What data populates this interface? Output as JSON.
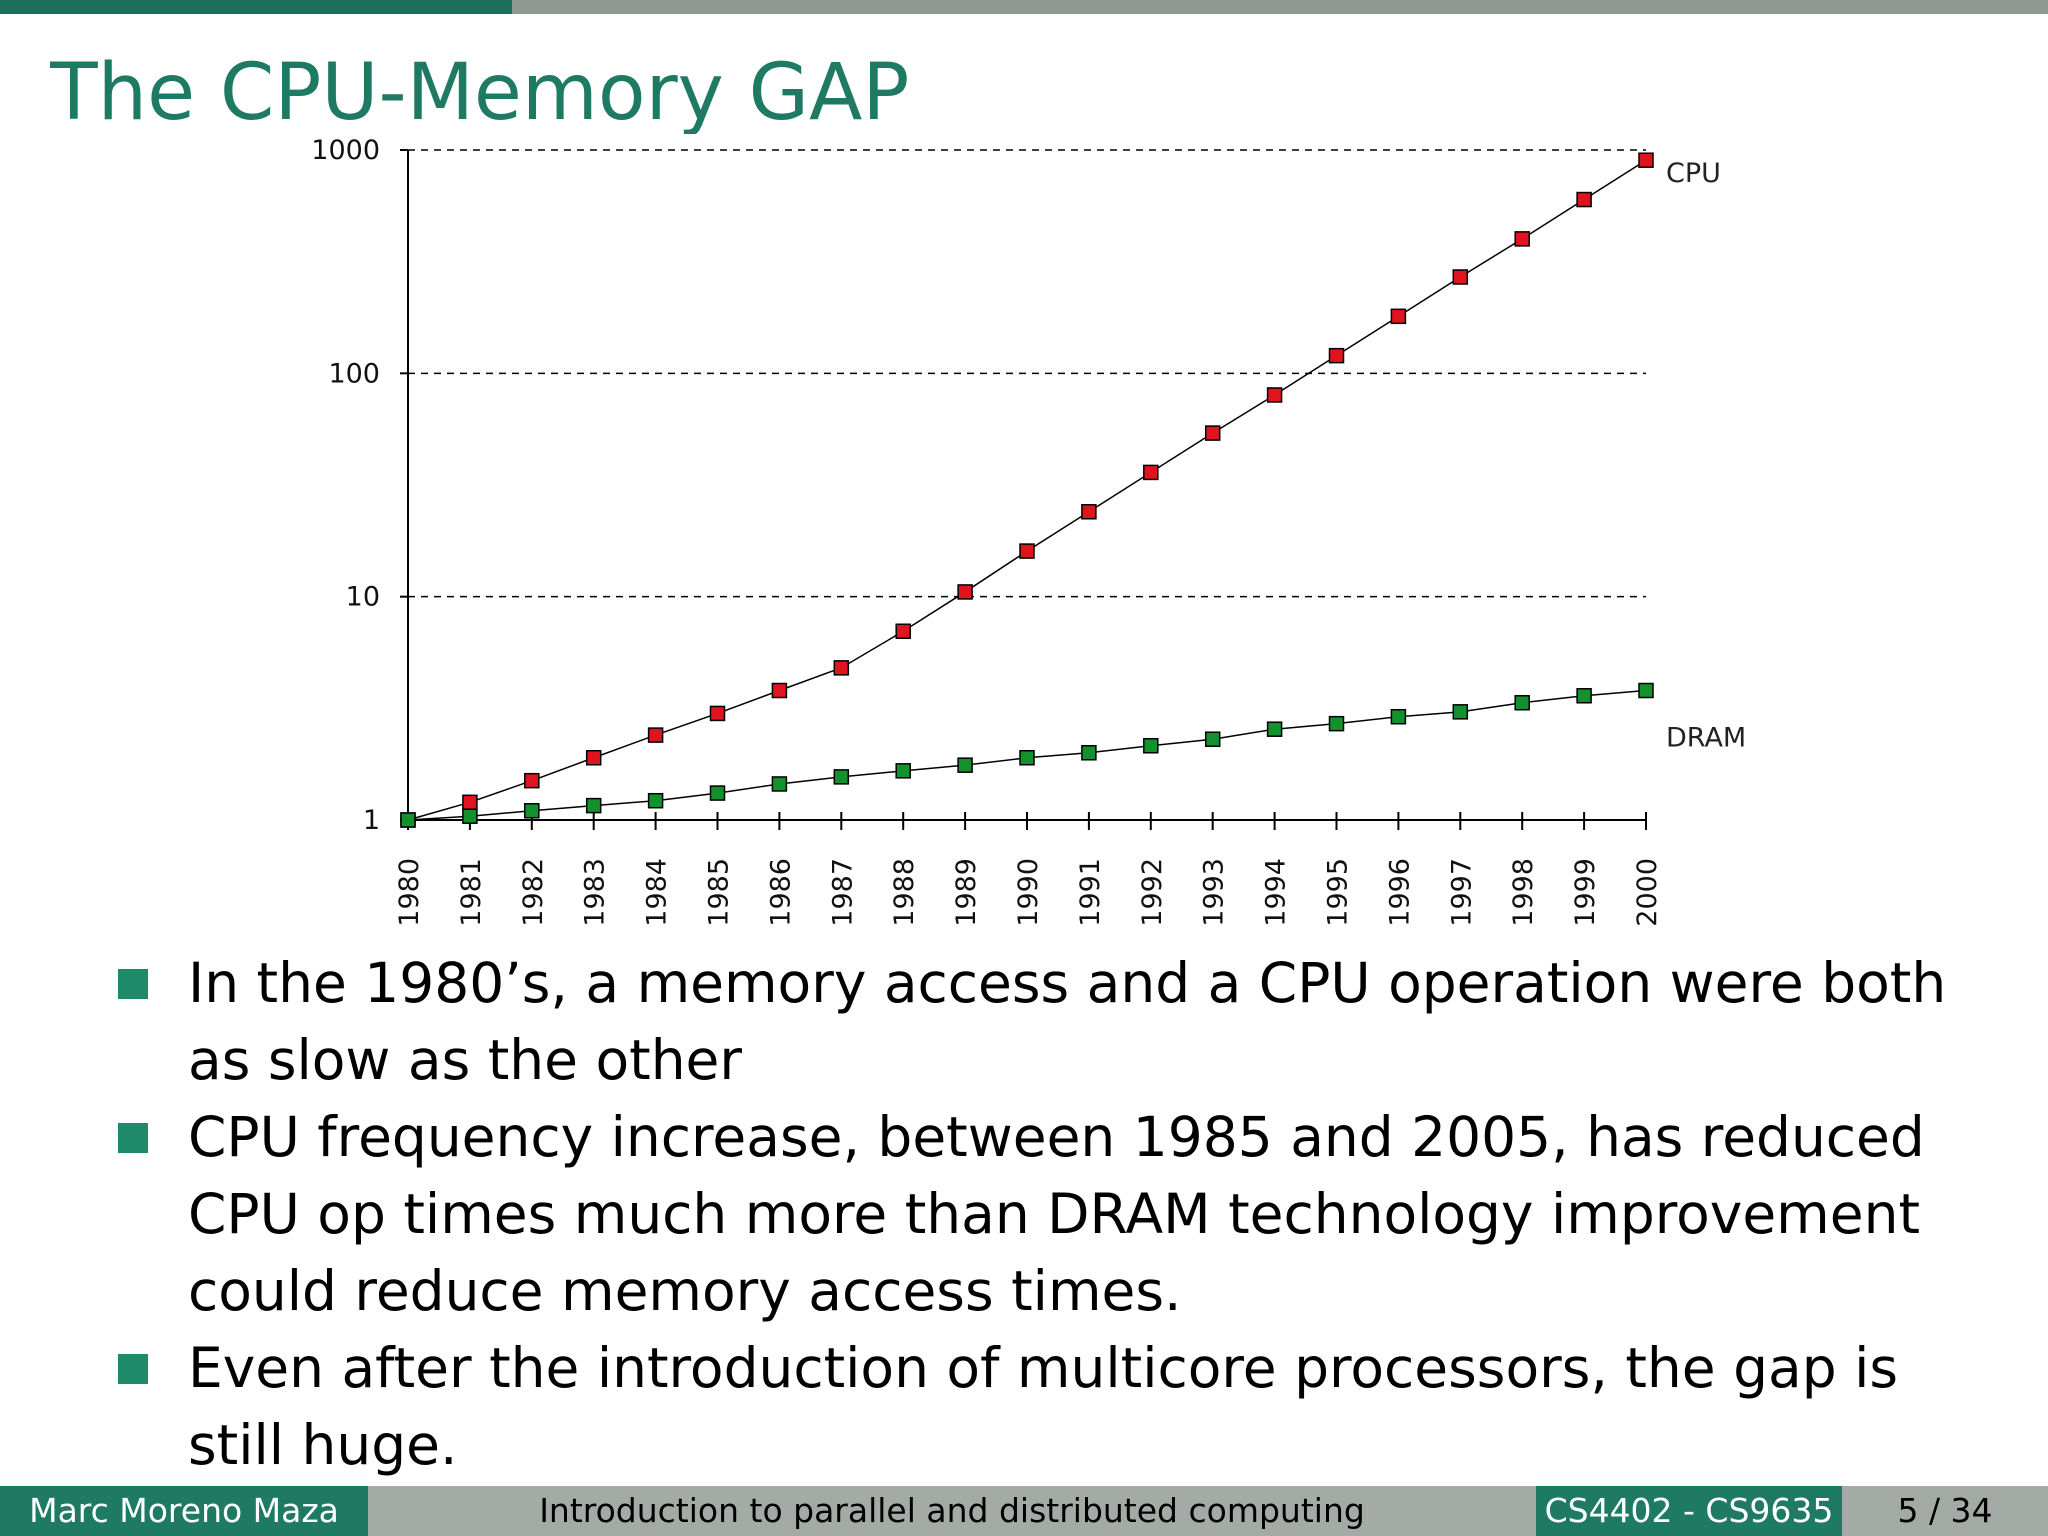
{
  "slide": {
    "title": "The CPU-Memory GAP",
    "bullets": [
      "In the 1980’s, a memory access and a CPU operation were both as slow as the other",
      "CPU frequency increase, between 1985 and 2005, has reduced CPU op times much more than DRAM technology improvement could reduce memory access times.",
      "Even after the introduction of multicore processors, the gap is still huge."
    ]
  },
  "footer": {
    "author": "Marc Moreno Maza",
    "title": "Introduction to parallel and distributed computing",
    "course": "CS4402 - CS9635",
    "page": "5 / 34"
  },
  "colors": {
    "theme": "#1f7a63",
    "cpu_marker": "#e0141e",
    "dram_marker": "#13912c"
  },
  "chart_data": {
    "type": "line",
    "title": "",
    "xlabel": "",
    "ylabel": "",
    "y_scale": "log",
    "ylim": [
      1,
      1000
    ],
    "y_ticks": [
      1,
      10,
      100,
      1000
    ],
    "y_tick_labels": [
      "1",
      "10",
      "100",
      "1000"
    ],
    "grid": "dashed horizontal at decades",
    "x": [
      1980,
      1981,
      1982,
      1983,
      1984,
      1985,
      1986,
      1987,
      1988,
      1989,
      1990,
      1991,
      1992,
      1993,
      1994,
      1995,
      1996,
      1997,
      1998,
      1999,
      2000
    ],
    "x_tick_labels": [
      "1980",
      "1981",
      "1982",
      "1983",
      "1984",
      "1985",
      "1986",
      "1987",
      "1988",
      "1989",
      "1990",
      "1991",
      "1992",
      "1993",
      "1994",
      "1995",
      "1996",
      "1997",
      "1998",
      "1999",
      "2000"
    ],
    "series": [
      {
        "name": "CPU",
        "values": [
          1,
          1.2,
          1.5,
          1.9,
          2.4,
          3.0,
          3.8,
          4.8,
          7.0,
          10.5,
          16,
          24,
          36,
          54,
          80,
          120,
          180,
          270,
          400,
          600,
          900
        ]
      },
      {
        "name": "DRAM",
        "values": [
          1,
          1.04,
          1.1,
          1.16,
          1.22,
          1.32,
          1.45,
          1.56,
          1.66,
          1.76,
          1.9,
          2.0,
          2.15,
          2.3,
          2.55,
          2.7,
          2.9,
          3.05,
          3.35,
          3.6,
          3.8
        ]
      }
    ],
    "legend": "labels at right end of each line"
  }
}
